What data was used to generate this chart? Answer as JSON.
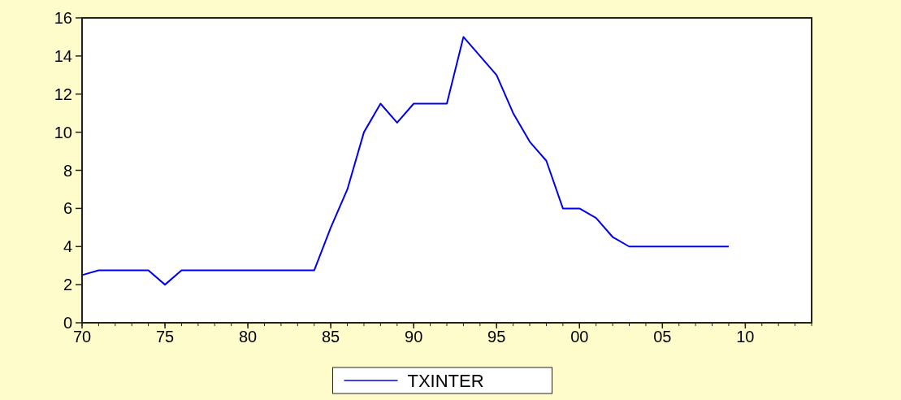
{
  "chart_data": {
    "type": "line",
    "x": [
      1970,
      1971,
      1972,
      1973,
      1974,
      1975,
      1976,
      1977,
      1978,
      1979,
      1980,
      1981,
      1982,
      1983,
      1984,
      1985,
      1986,
      1987,
      1988,
      1989,
      1990,
      1991,
      1992,
      1993,
      1994,
      1995,
      1996,
      1997,
      1998,
      1999,
      2000,
      2001,
      2002,
      2003,
      2004,
      2005,
      2006,
      2007,
      2008,
      2009
    ],
    "series": [
      {
        "name": "TXINTER",
        "color": "#0000ee",
        "values": [
          2.5,
          2.75,
          2.75,
          2.75,
          2.75,
          2,
          2.75,
          2.75,
          2.75,
          2.75,
          2.75,
          2.75,
          2.75,
          2.75,
          2.75,
          5,
          7,
          10,
          11.5,
          10.5,
          11.5,
          11.5,
          11.5,
          15,
          14,
          13,
          11,
          9.5,
          8.5,
          6,
          6,
          5.5,
          4.5,
          4,
          4,
          4,
          4,
          4,
          4,
          4
        ]
      }
    ],
    "xlim": [
      1970,
      2014
    ],
    "xticks": [
      {
        "value": 1970,
        "label": "70"
      },
      {
        "value": 1975,
        "label": "75"
      },
      {
        "value": 1980,
        "label": "80"
      },
      {
        "value": 1985,
        "label": "85"
      },
      {
        "value": 1990,
        "label": "90"
      },
      {
        "value": 1995,
        "label": "95"
      },
      {
        "value": 2000,
        "label": "00"
      },
      {
        "value": 2005,
        "label": "05"
      },
      {
        "value": 2010,
        "label": "10"
      }
    ],
    "ylim": [
      0,
      16
    ],
    "yticks": [
      0,
      2,
      4,
      6,
      8,
      10,
      12,
      14,
      16
    ],
    "legend": "bottom",
    "grid": false,
    "line_style": "solid"
  }
}
